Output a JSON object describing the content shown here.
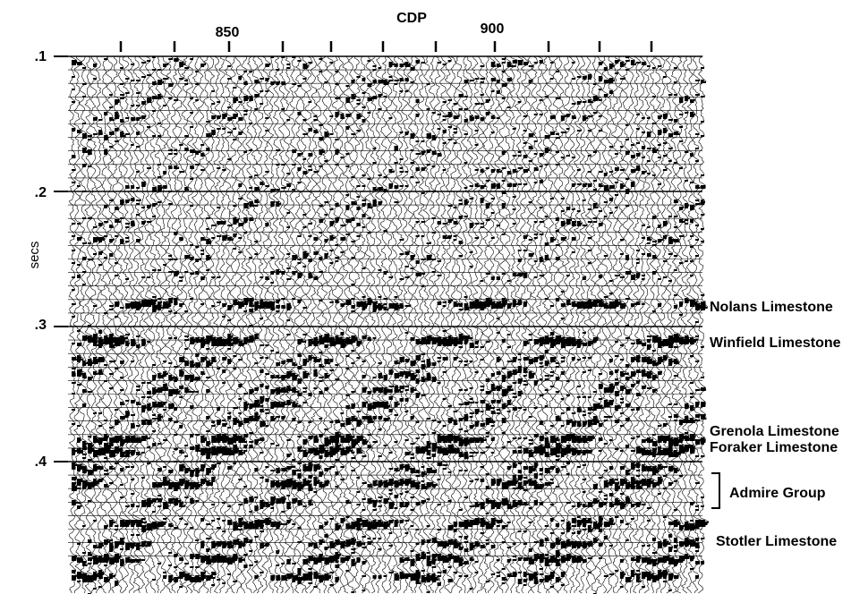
{
  "chart_data": {
    "type": "seismic-section",
    "title": "",
    "xlabel": "CDP",
    "ylabel": "secs",
    "x_ticks": [
      {
        "value": 850,
        "label": "850"
      },
      {
        "value": 900,
        "label": "900"
      }
    ],
    "x_minor_ticks": [
      830,
      840,
      850,
      860,
      870,
      880,
      890,
      900,
      910,
      920
    ],
    "xlim": [
      818,
      932
    ],
    "y_ticks": [
      {
        "value": 0.1,
        "label": ".1"
      },
      {
        "value": 0.2,
        "label": ".2"
      },
      {
        "value": 0.3,
        "label": ".3"
      },
      {
        "value": 0.4,
        "label": ".4"
      }
    ],
    "ylim": [
      0.1,
      0.47
    ],
    "horizons": [
      {
        "name": "Nolans Limestone",
        "time": 0.28
      },
      {
        "name": "Winfield Limestone",
        "time": 0.31
      },
      {
        "name": "Grenola Limestone",
        "time": 0.38
      },
      {
        "name": "Foraker Limestone",
        "time": 0.39
      },
      {
        "name": "Admire Group",
        "time_top": 0.413,
        "time_bottom": 0.45,
        "bracket": true
      },
      {
        "name": "Stotler Limestone",
        "time": 0.47
      }
    ],
    "timing_lines_every": 0.01
  }
}
